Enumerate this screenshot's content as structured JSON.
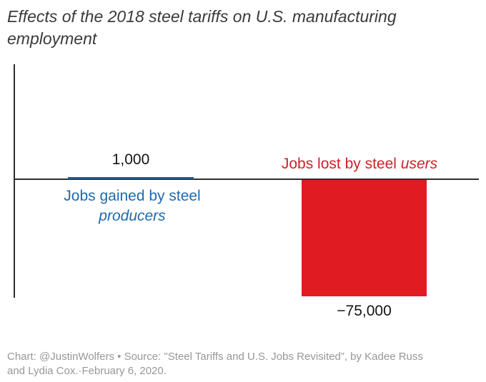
{
  "title": "Effects of the 2018 steel tariffs on U.S. manufacturing employment",
  "chart_data": {
    "type": "bar",
    "orientation": "vertical",
    "categories": [
      "Jobs gained by steel producers",
      "Jobs lost by steel users"
    ],
    "values": [
      1000,
      -75000
    ],
    "data_labels": [
      "1,000",
      "−75,000"
    ],
    "title": "Effects of the 2018 steel tariffs on U.S. manufacturing employment",
    "xlabel": "",
    "ylabel": "",
    "ylim": [
      -75000,
      75000
    ],
    "grid": false,
    "legend": "none",
    "series_colors": [
      "#1e5c8d",
      "#e11b22"
    ]
  },
  "labels": {
    "gained": {
      "value": "1,000",
      "line1": "Jobs gained by steel",
      "line2_italic": "producers"
    },
    "lost": {
      "value": "−75,000",
      "text": "Jobs lost by steel ",
      "text_italic": "users"
    }
  },
  "colors": {
    "bar_positive": "#1e5c8d",
    "bar_negative": "#e11b22",
    "label_positive": "#1c6ab0",
    "label_negative": "#cd2228",
    "axis": "#2e2e2e",
    "title_text": "#3a3a3a",
    "caption_text": "#979797"
  },
  "caption": {
    "line1": "Chart: @JustinWolfers • Source: \"Steel Tariffs and U.S. Jobs Revisited”, by Kadee Russ",
    "line2": "and Lydia Cox.·February 6, 2020."
  }
}
